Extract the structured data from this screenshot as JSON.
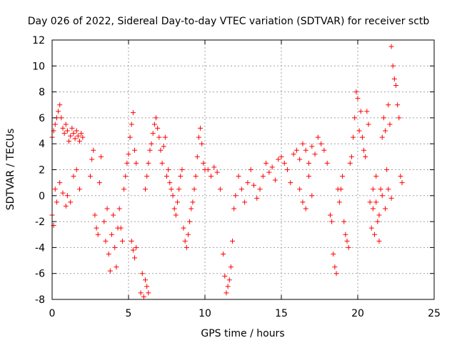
{
  "chart_data": {
    "type": "scatter",
    "title": "Day 026 of 2022, Sidereal Day-to-day VTEC variation (SDTVAR) for receiver sctb",
    "xlabel": "GPS time / hours",
    "ylabel": "SDTVAR / TECUs",
    "xlim": [
      0,
      25
    ],
    "ylim": [
      -8,
      12
    ],
    "xticks": [
      "0",
      "5",
      "10",
      "15",
      "20",
      "25"
    ],
    "xtick_values": [
      0,
      5,
      10,
      15,
      20,
      25
    ],
    "yticks": [
      "-8",
      "-6",
      "-4",
      "-2",
      "0",
      "2",
      "4",
      "6",
      "8",
      "10",
      "12"
    ],
    "ytick_values": [
      -8,
      -6,
      -4,
      -2,
      0,
      2,
      4,
      6,
      8,
      10,
      12
    ],
    "grid": true,
    "marker": "+",
    "series": [
      {
        "name": "SDTVAR",
        "color": "#ff0000",
        "x": [
          0.0,
          0.1,
          0.2,
          0.3,
          0.4,
          0.5,
          0.6,
          0.7,
          0.8,
          0.9,
          1.0,
          1.1,
          1.2,
          1.3,
          1.4,
          1.5,
          1.6,
          1.7,
          1.8,
          1.9,
          2.0,
          0.0,
          0.1,
          0.2,
          0.3,
          0.5,
          0.7,
          0.9,
          1.0,
          1.2,
          1.4,
          1.6,
          1.8,
          2.5,
          2.6,
          2.7,
          2.8,
          2.9,
          3.0,
          3.1,
          3.2,
          3.4,
          3.5,
          3.6,
          3.7,
          3.8,
          3.9,
          4.0,
          4.1,
          4.2,
          4.3,
          4.4,
          4.5,
          4.6,
          4.7,
          4.8,
          4.9,
          5.0,
          5.1,
          5.2,
          5.3,
          5.4,
          5.5,
          5.2,
          5.3,
          5.4,
          5.5,
          5.8,
          5.9,
          6.0,
          6.1,
          6.2,
          6.3,
          6.4,
          6.5,
          6.6,
          6.7,
          6.8,
          6.9,
          7.0,
          7.1,
          7.2,
          7.3,
          7.4,
          7.5,
          7.6,
          7.7,
          7.8,
          7.9,
          8.0,
          8.1,
          8.2,
          8.3,
          8.4,
          8.5,
          8.6,
          8.7,
          8.8,
          8.9,
          9.0,
          9.1,
          9.2,
          9.3,
          9.4,
          9.5,
          9.6,
          9.7,
          9.8,
          9.9,
          10.0,
          6.1,
          6.2,
          6.3,
          10.2,
          10.4,
          10.6,
          10.8,
          11.0,
          11.2,
          11.3,
          11.4,
          11.5,
          11.6,
          11.7,
          11.8,
          11.9,
          12.0,
          12.2,
          12.4,
          12.6,
          12.8,
          13.0,
          13.2,
          13.4,
          13.6,
          13.8,
          14.0,
          14.2,
          14.4,
          14.6,
          14.8,
          15.0,
          15.2,
          15.4,
          15.6,
          15.8,
          16.0,
          16.2,
          16.4,
          16.6,
          16.8,
          17.0,
          17.2,
          17.4,
          17.6,
          17.8,
          18.0,
          16.2,
          16.4,
          16.6,
          16.8,
          17.0,
          18.2,
          18.3,
          18.4,
          18.5,
          18.6,
          18.7,
          18.8,
          18.9,
          19.0,
          19.1,
          19.2,
          19.3,
          19.4,
          19.5,
          19.6,
          19.7,
          19.8,
          19.9,
          20.0,
          20.1,
          20.2,
          20.3,
          20.4,
          20.5,
          20.6,
          20.7,
          20.8,
          20.9,
          21.0,
          21.1,
          21.2,
          21.3,
          21.4,
          21.5,
          21.6,
          21.7,
          21.8,
          21.9,
          22.0,
          22.1,
          22.2,
          22.3,
          22.4,
          22.5,
          22.6,
          22.7,
          22.8,
          22.9,
          21.0,
          21.2,
          21.4,
          21.6,
          21.8,
          22.0,
          22.2
        ],
        "y": [
          4.5,
          5.0,
          5.5,
          6.0,
          6.5,
          7.0,
          6.0,
          5.2,
          4.8,
          5.5,
          5.0,
          4.2,
          4.6,
          5.2,
          4.8,
          4.4,
          5.0,
          4.6,
          4.2,
          4.8,
          4.5,
          -1.5,
          -2.3,
          0.5,
          -0.5,
          1.0,
          0.2,
          -0.8,
          0.0,
          -0.5,
          1.5,
          2.0,
          0.5,
          1.5,
          2.8,
          3.5,
          -1.5,
          -2.5,
          -3.0,
          1.0,
          3.0,
          -2.0,
          -3.5,
          -1.0,
          -4.5,
          -5.8,
          -3.0,
          -1.5,
          -4.0,
          -5.5,
          -2.5,
          -1.0,
          -2.5,
          -3.5,
          0.5,
          1.5,
          2.5,
          3.2,
          4.5,
          5.5,
          6.4,
          3.5,
          2.5,
          -3.5,
          -4.2,
          -4.8,
          -4.0,
          -7.5,
          -6.0,
          -7.8,
          0.5,
          1.5,
          2.5,
          3.5,
          4.0,
          4.8,
          5.5,
          6.0,
          5.2,
          4.5,
          3.5,
          2.5,
          3.8,
          4.5,
          1.5,
          2.0,
          1.0,
          0.5,
          0.0,
          -1.0,
          -1.5,
          -0.5,
          0.5,
          1.5,
          2.0,
          -2.5,
          -3.5,
          -4.0,
          -3.0,
          -2.0,
          -1.0,
          -0.5,
          0.5,
          1.5,
          3.0,
          4.5,
          5.2,
          4.0,
          2.5,
          2.0,
          -6.5,
          -7.0,
          -7.5,
          2.0,
          1.5,
          2.2,
          1.8,
          0.5,
          -4.5,
          -6.2,
          -7.5,
          -7.0,
          -6.5,
          -5.5,
          -3.5,
          -1.0,
          0.0,
          1.5,
          0.5,
          -0.5,
          1.0,
          2.0,
          0.8,
          -0.2,
          0.5,
          1.5,
          2.5,
          1.8,
          2.2,
          1.2,
          2.8,
          3.0,
          2.5,
          2.0,
          1.0,
          3.2,
          3.5,
          2.8,
          4.0,
          3.5,
          2.5,
          3.8,
          3.2,
          4.5,
          4.0,
          3.5,
          2.5,
          0.5,
          -0.5,
          -1.0,
          1.5,
          0.0,
          -1.5,
          -2.0,
          -4.5,
          -5.5,
          -6.0,
          0.5,
          -0.5,
          0.5,
          1.5,
          -2.0,
          -3.0,
          -3.5,
          -4.0,
          2.5,
          3.0,
          4.5,
          6.0,
          8.0,
          7.5,
          5.0,
          6.5,
          4.5,
          3.5,
          3.0,
          6.5,
          5.5,
          -0.5,
          -2.5,
          -1.0,
          -3.0,
          1.5,
          -2.0,
          -3.5,
          0.5,
          4.5,
          6.0,
          5.0,
          2.0,
          7.0,
          5.5,
          11.5,
          10.0,
          9.0,
          8.5,
          7.0,
          6.0,
          1.5,
          1.0,
          0.5,
          -0.5,
          -1.5,
          0.0,
          -1.0,
          0.5,
          -0.2
        ]
      }
    ]
  }
}
